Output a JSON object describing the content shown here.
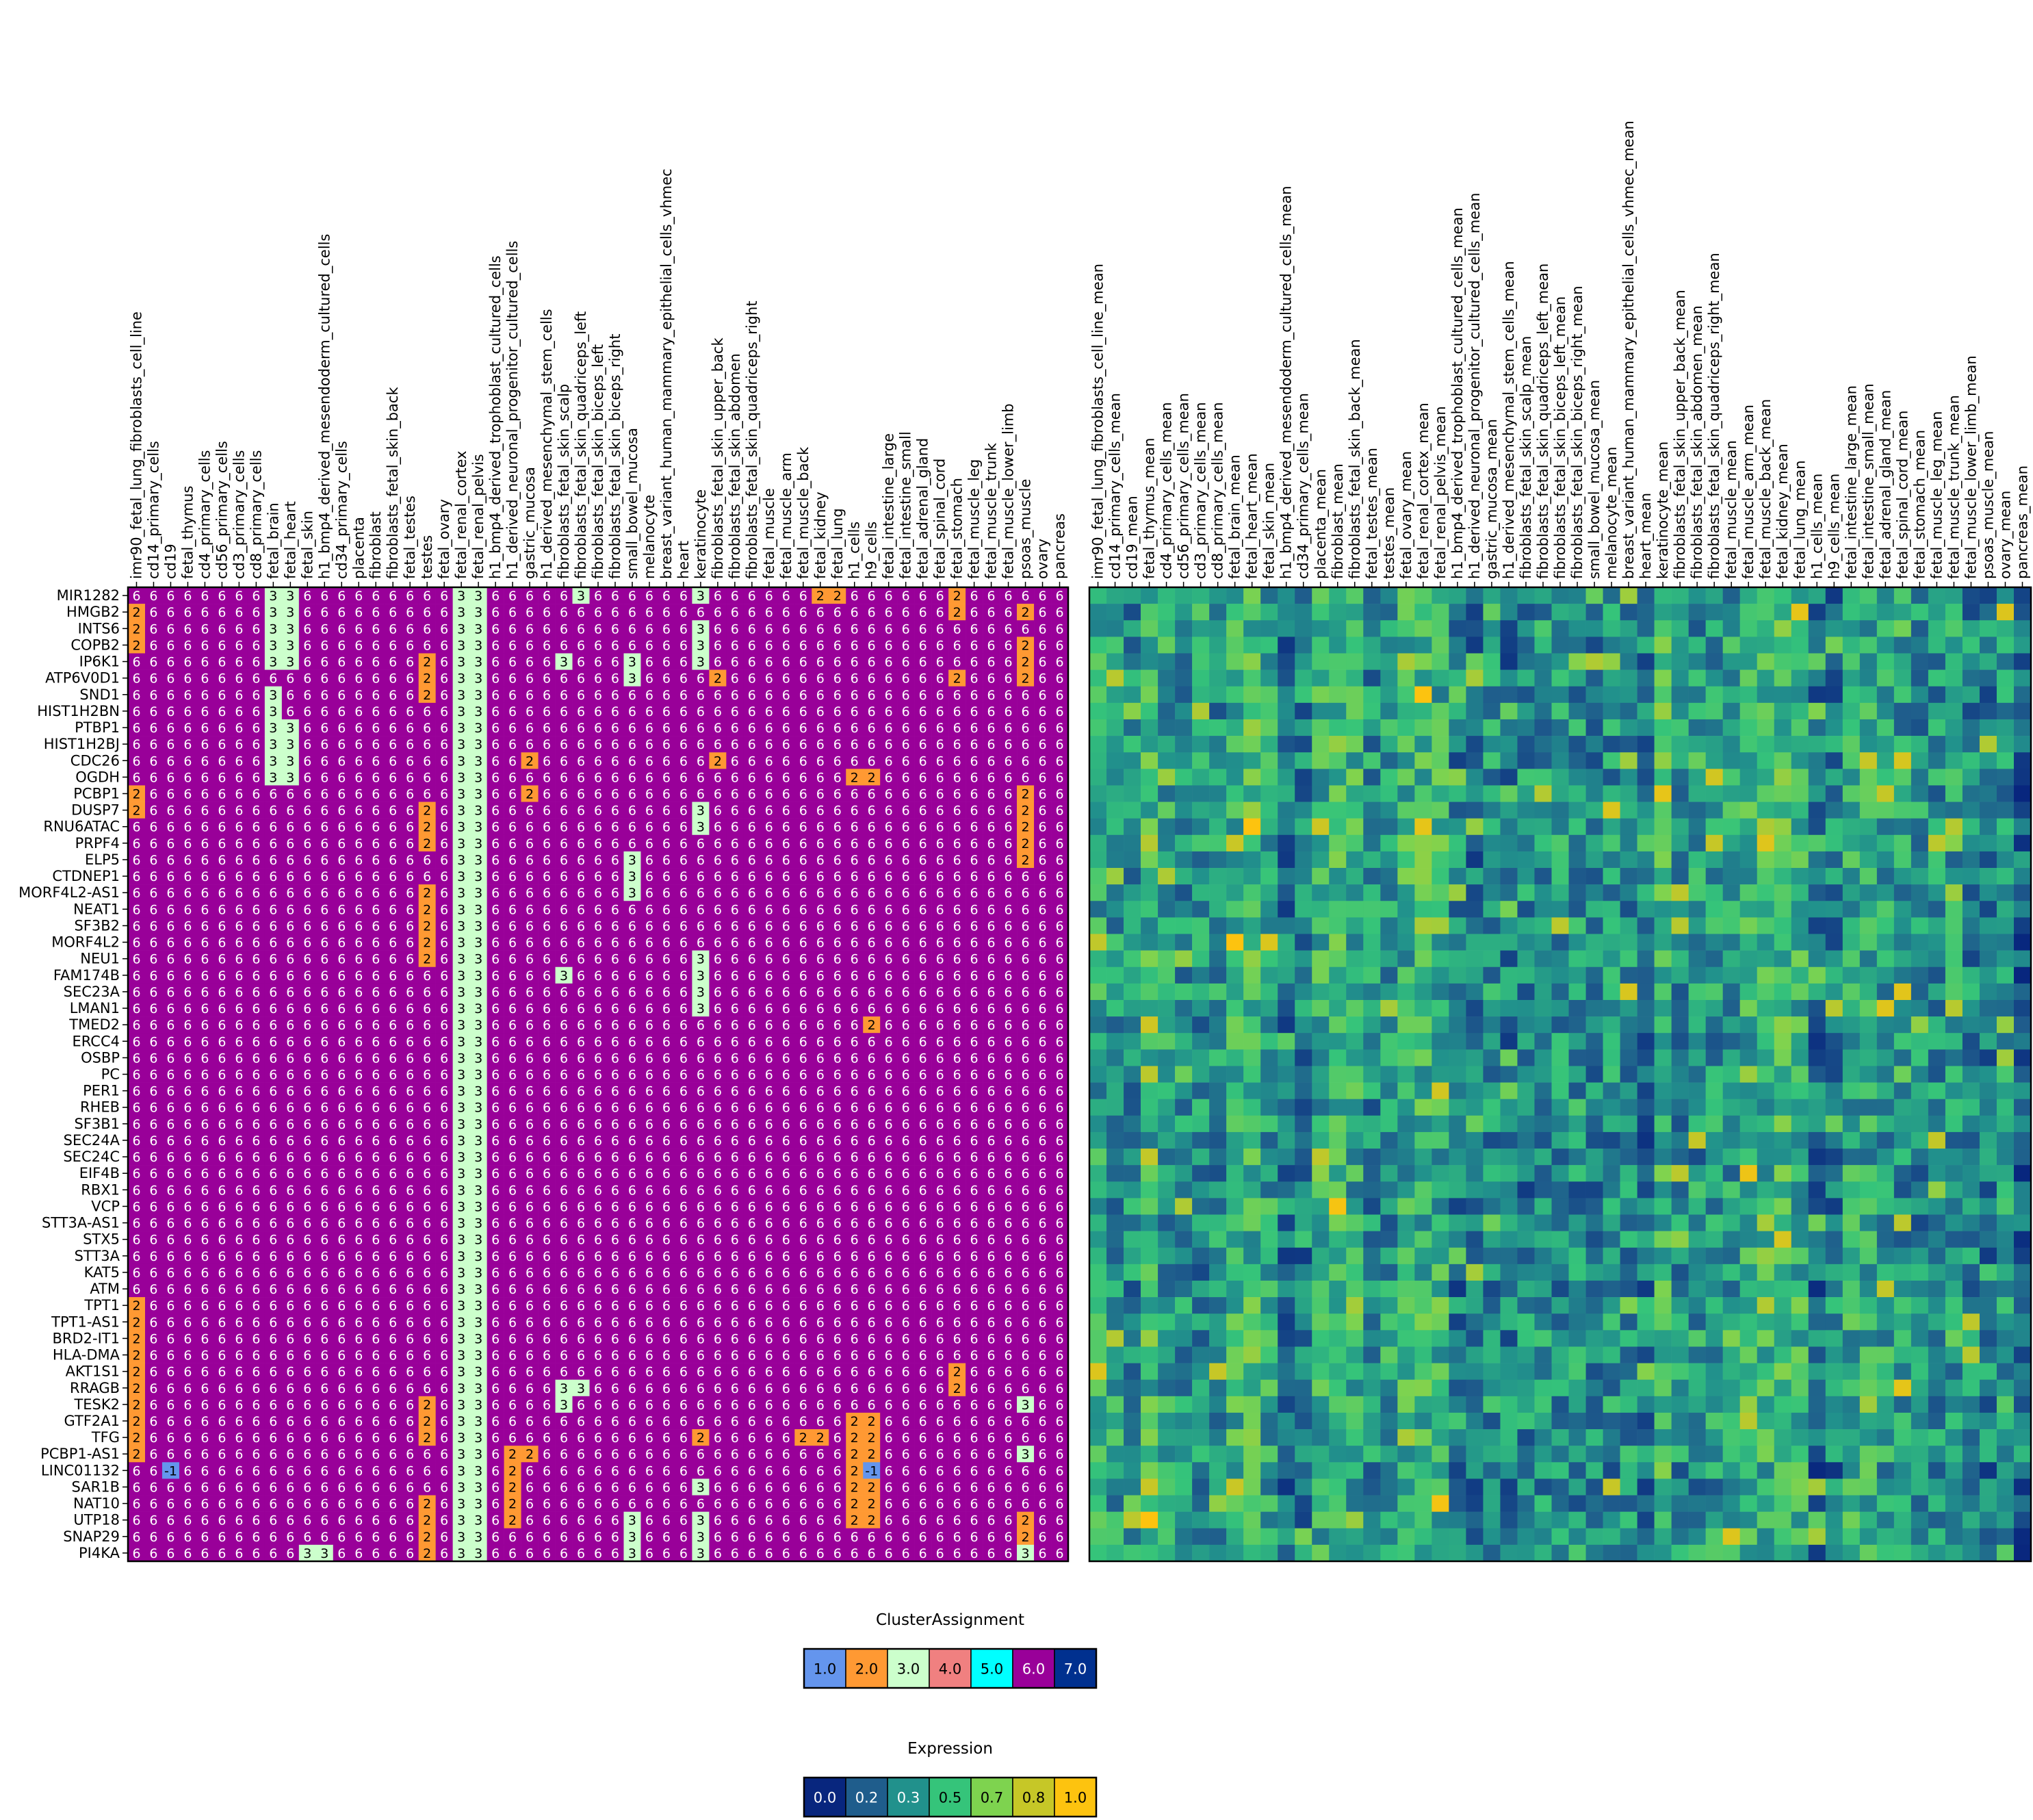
{
  "chart_data": [
    {
      "type": "heatmap",
      "title": "",
      "legend_title": "ClusterAssignment",
      "legend_values": [
        "1.0",
        "2.0",
        "3.0",
        "4.0",
        "5.0",
        "6.0",
        "7.0"
      ],
      "legend_colors": [
        "#6495ed",
        "#ff9933",
        "#ccffcc",
        "#f08080",
        "#00ffff",
        "#990099",
        "#00308f"
      ],
      "columns": [
        "imr90_fetal_lung_fibroblasts_cell_line",
        "cd14_primary_cells",
        "cd19",
        "fetal_thymus",
        "cd4_primary_cells",
        "cd56_primary_cells",
        "cd3_primary_cells",
        "cd8_primary_cells",
        "fetal_brain",
        "fetal_heart",
        "fetal_skin",
        "h1_bmp4_derived_mesendoderm_cultured_cells",
        "cd34_primary_cells",
        "placenta",
        "fibroblast",
        "fibroblasts_fetal_skin_back",
        "fetal_testes",
        "testes",
        "fetal_ovary",
        "fetal_renal_cortex",
        "fetal_renal_pelvis",
        "h1_bmp4_derived_trophoblast_cultured_cells",
        "h1_derived_neuronal_progenitor_cultured_cells",
        "gastric_mucosa",
        "h1_derived_mesenchymal_stem_cells",
        "fibroblasts_fetal_skin_scalp",
        "fibroblasts_fetal_skin_quadriceps_left",
        "fibroblasts_fetal_skin_biceps_left",
        "fibroblasts_fetal_skin_biceps_right",
        "small_bowel_mucosa",
        "melanocyte",
        "breast_variant_human_mammary_epithelial_cells_vhmec",
        "heart",
        "keratinocyte",
        "fibroblasts_fetal_skin_upper_back",
        "fibroblasts_fetal_skin_abdomen",
        "fibroblasts_fetal_skin_quadriceps_right",
        "fetal_muscle",
        "fetal_muscle_arm",
        "fetal_muscle_back",
        "fetal_kidney",
        "fetal_lung",
        "h1_cells",
        "h9_cells",
        "fetal_intestine_large",
        "fetal_intestine_small",
        "fetal_adrenal_gland",
        "fetal_spinal_cord",
        "fetal_stomach",
        "fetal_muscle_leg",
        "fetal_muscle_trunk",
        "fetal_muscle_lower_limb",
        "psoas_muscle",
        "ovary",
        "pancreas"
      ],
      "rows": [
        "MIR1282",
        "HMGB2",
        "INTS6",
        "COPB2",
        "IP6K1",
        "ATP6V0D1",
        "SND1",
        "HIST1H2BN",
        "PTBP1",
        "HIST1H2BJ",
        "CDC26",
        "OGDH",
        "PCBP1",
        "DUSP7",
        "RNU6ATAC",
        "PRPF4",
        "ELP5",
        "CTDNEP1",
        "MORF4L2-AS1",
        "NEAT1",
        "SF3B2",
        "MORF4L2",
        "NEU1",
        "FAM174B",
        "SEC23A",
        "LMAN1",
        "TMED2",
        "ERCC4",
        "OSBP",
        "PC",
        "PER1",
        "RHEB",
        "SF3B1",
        "SEC24A",
        "SEC24C",
        "EIF4B",
        "RBX1",
        "VCP",
        "STT3A-AS1",
        "STX5",
        "STT3A",
        "KAT5",
        "ATM",
        "TPT1",
        "TPT1-AS1",
        "BRD2-IT1",
        "HLA-DMA",
        "AKT1S1",
        "RRAGB",
        "TESK2",
        "GTF2A1",
        "TFG",
        "PCBP1-AS1",
        "LINC01132",
        "SAR1B",
        "NAT10",
        "UTP18",
        "SNAP29",
        "PI4KA"
      ],
      "default_value": 6,
      "values_by_row": {
        "MIR1282": {
          "8": 3,
          "9": 3,
          "19": 3,
          "20": 3,
          "26": 3,
          "33": 3,
          "40": 2,
          "41": 2,
          "48": 2
        },
        "HMGB2": {
          "0": 2,
          "8": 3,
          "9": 3,
          "19": 3,
          "20": 3,
          "48": 2,
          "52": 2
        },
        "INTS6": {
          "0": 2,
          "8": 3,
          "9": 3,
          "19": 3,
          "20": 3,
          "33": 3
        },
        "COPB2": {
          "0": 2,
          "8": 3,
          "9": 3,
          "19": 3,
          "20": 3,
          "33": 3,
          "52": 2
        },
        "IP6K1": {
          "8": 3,
          "9": 3,
          "17": 2,
          "19": 3,
          "20": 3,
          "25": 3,
          "29": 3,
          "33": 3,
          "52": 2
        },
        "ATP6V0D1": {
          "17": 2,
          "19": 3,
          "20": 3,
          "29": 3,
          "34": 2,
          "48": 2,
          "52": 2
        },
        "SND1": {
          "8": 3,
          "17": 2,
          "19": 3,
          "20": 3
        },
        "HIST1H2BN": {
          "8": 3,
          "19": 3,
          "20": 3
        },
        "PTBP1": {
          "8": 3,
          "9": 3,
          "19": 3,
          "20": 3
        },
        "HIST1H2BJ": {
          "8": 3,
          "9": 3,
          "19": 3,
          "20": 3
        },
        "CDC26": {
          "8": 3,
          "9": 3,
          "19": 3,
          "20": 3,
          "23": 2,
          "34": 2
        },
        "OGDH": {
          "8": 3,
          "9": 3,
          "19": 3,
          "20": 3,
          "42": 2,
          "43": 2
        },
        "PCBP1": {
          "0": 2,
          "19": 3,
          "20": 3,
          "23": 2,
          "52": 2
        },
        "DUSP7": {
          "0": 2,
          "17": 2,
          "19": 3,
          "20": 3,
          "33": 3,
          "52": 2
        },
        "RNU6ATAC": {
          "17": 2,
          "19": 3,
          "20": 3,
          "33": 3,
          "52": 2
        },
        "PRPF4": {
          "17": 2,
          "19": 3,
          "20": 3,
          "52": 2
        },
        "ELP5": {
          "19": 3,
          "20": 3,
          "29": 3,
          "52": 2
        },
        "CTDNEP1": {
          "19": 3,
          "20": 3,
          "29": 3
        },
        "MORF4L2-AS1": {
          "17": 2,
          "19": 3,
          "20": 3,
          "29": 3
        },
        "NEAT1": {
          "17": 2,
          "19": 3,
          "20": 3
        },
        "SF3B2": {
          "17": 2,
          "19": 3,
          "20": 3
        },
        "MORF4L2": {
          "17": 2,
          "19": 3,
          "20": 3
        },
        "NEU1": {
          "17": 2,
          "19": 3,
          "20": 3,
          "33": 3
        },
        "FAM174B": {
          "19": 3,
          "20": 3,
          "25": 3,
          "33": 3
        },
        "SEC23A": {
          "19": 3,
          "20": 3,
          "33": 3
        },
        "LMAN1": {
          "19": 3,
          "20": 3,
          "33": 3
        },
        "TMED2": {
          "19": 3,
          "20": 3,
          "43": 2
        },
        "ERCC4": {
          "19": 3,
          "20": 3
        },
        "OSBP": {
          "19": 3,
          "20": 3
        },
        "PC": {
          "19": 3,
          "20": 3
        },
        "PER1": {
          "19": 3,
          "20": 3
        },
        "RHEB": {
          "19": 3,
          "20": 3
        },
        "SF3B1": {
          "19": 3,
          "20": 3
        },
        "SEC24A": {
          "19": 3,
          "20": 3
        },
        "SEC24C": {
          "19": 3,
          "20": 3
        },
        "EIF4B": {
          "19": 3,
          "20": 3
        },
        "RBX1": {
          "19": 3,
          "20": 3
        },
        "VCP": {
          "19": 3,
          "20": 3
        },
        "STT3A-AS1": {
          "19": 3,
          "20": 3
        },
        "STX5": {
          "19": 3,
          "20": 3
        },
        "STT3A": {
          "19": 3,
          "20": 3
        },
        "KAT5": {
          "19": 3,
          "20": 3
        },
        "ATM": {
          "19": 3,
          "20": 3
        },
        "TPT1": {
          "0": 2,
          "19": 3,
          "20": 3
        },
        "TPT1-AS1": {
          "0": 2,
          "19": 3,
          "20": 3
        },
        "BRD2-IT1": {
          "0": 2,
          "19": 3,
          "20": 3
        },
        "HLA-DMA": {
          "0": 2,
          "19": 3,
          "20": 3
        },
        "AKT1S1": {
          "0": 2,
          "19": 3,
          "20": 3,
          "48": 2
        },
        "RRAGB": {
          "0": 2,
          "19": 3,
          "20": 3,
          "25": 3,
          "26": 3,
          "48": 2
        },
        "TESK2": {
          "0": 2,
          "17": 2,
          "19": 3,
          "20": 3,
          "25": 3,
          "52": 3
        },
        "GTF2A1": {
          "0": 2,
          "17": 2,
          "19": 3,
          "20": 3,
          "42": 2,
          "43": 2
        },
        "TFG": {
          "0": 2,
          "17": 2,
          "19": 3,
          "20": 3,
          "33": 2,
          "39": 2,
          "40": 2,
          "42": 2,
          "43": 2
        },
        "PCBP1-AS1": {
          "0": 2,
          "19": 3,
          "20": 3,
          "22": 2,
          "23": 2,
          "42": 2,
          "43": 2,
          "52": 3
        },
        "LINC01132": {
          "2": -1,
          "19": 3,
          "20": 3,
          "22": 2,
          "42": 2,
          "43": -1
        },
        "SAR1B": {
          "19": 3,
          "20": 3,
          "22": 2,
          "33": 3,
          "42": 2,
          "43": 2
        },
        "NAT10": {
          "17": 2,
          "19": 3,
          "20": 3,
          "22": 2,
          "42": 2,
          "43": 2
        },
        "UTP18": {
          "17": 2,
          "19": 3,
          "20": 3,
          "22": 2,
          "29": 3,
          "33": 3,
          "42": 2,
          "43": 2,
          "52": 2
        },
        "SNAP29": {
          "17": 2,
          "19": 3,
          "20": 3,
          "29": 3,
          "33": 3,
          "52": 2
        },
        "PI4KA": {
          "10": 3,
          "11": 3,
          "17": 2,
          "19": 3,
          "20": 3,
          "29": 3,
          "33": 3,
          "52": 3
        }
      }
    },
    {
      "type": "heatmap",
      "title": "",
      "legend_title": "Expression",
      "legend_values": [
        "0.0",
        "0.2",
        "0.3",
        "0.5",
        "0.7",
        "0.8",
        "1.0"
      ],
      "legend_colors": [
        "#08267e",
        "#1f5d8c",
        "#21918c",
        "#35c47a",
        "#7ed34f",
        "#c6c727",
        "#fdc30f"
      ],
      "range": [
        0,
        1
      ],
      "columns": [
        "imr90_fetal_lung_fibroblasts_cell_line_mean",
        "cd14_primary_cells_mean",
        "cd19_mean",
        "fetal_thymus_mean",
        "cd4_primary_cells_mean",
        "cd56_primary_cells_mean",
        "cd3_primary_cells_mean",
        "cd8_primary_cells_mean",
        "fetal_brain_mean",
        "fetal_heart_mean",
        "fetal_skin_mean",
        "h1_bmp4_derived_mesendoderm_cultured_cells_mean",
        "cd34_primary_cells_mean",
        "placenta_mean",
        "fibroblast_mean",
        "fibroblasts_fetal_skin_back_mean",
        "fetal_testes_mean",
        "testes_mean",
        "fetal_ovary_mean",
        "fetal_renal_cortex_mean",
        "fetal_renal_pelvis_mean",
        "h1_bmp4_derived_trophoblast_cultured_cells_mean",
        "h1_derived_neuronal_progenitor_cultured_cells_mean",
        "gastric_mucosa_mean",
        "h1_derived_mesenchymal_stem_cells_mean",
        "fibroblasts_fetal_skin_scalp_mean",
        "fibroblasts_fetal_skin_quadriceps_left_mean",
        "fibroblasts_fetal_skin_biceps_left_mean",
        "fibroblasts_fetal_skin_biceps_right_mean",
        "small_bowel_mucosa_mean",
        "melanocyte_mean",
        "breast_variant_human_mammary_epithelial_cells_vhmec_mean",
        "heart_mean",
        "keratinocyte_mean",
        "fibroblasts_fetal_skin_upper_back_mean",
        "fibroblasts_fetal_skin_abdomen_mean",
        "fibroblasts_fetal_skin_quadriceps_right_mean",
        "fetal_muscle_mean",
        "fetal_muscle_arm_mean",
        "fetal_muscle_back_mean",
        "fetal_kidney_mean",
        "fetal_lung_mean",
        "h1_cells_mean",
        "h9_cells_mean",
        "fetal_intestine_large_mean",
        "fetal_intestine_small_mean",
        "fetal_adrenal_gland_mean",
        "fetal_spinal_cord_mean",
        "fetal_stomach_mean",
        "fetal_muscle_leg_mean",
        "fetal_muscle_trunk_mean",
        "fetal_muscle_lower_limb_mean",
        "psoas_muscle_mean",
        "ovary_mean",
        "pancreas_mean"
      ],
      "rows": "same as cluster heatmap",
      "column_profile": [
        0.45,
        0.35,
        0.3,
        0.55,
        0.4,
        0.3,
        0.3,
        0.3,
        0.5,
        0.6,
        0.4,
        0.15,
        0.2,
        0.5,
        0.55,
        0.5,
        0.3,
        0.35,
        0.5,
        0.55,
        0.5,
        0.2,
        0.15,
        0.3,
        0.2,
        0.25,
        0.3,
        0.3,
        0.3,
        0.25,
        0.3,
        0.3,
        0.2,
        0.6,
        0.3,
        0.3,
        0.35,
        0.4,
        0.5,
        0.55,
        0.6,
        0.55,
        0.15,
        0.2,
        0.45,
        0.45,
        0.4,
        0.35,
        0.3,
        0.3,
        0.35,
        0.25,
        0.2,
        0.35,
        0.05
      ],
      "row_profile": [
        0.35,
        0.35,
        0.38,
        0.4,
        0.35,
        0.35,
        0.38,
        0.38,
        0.4,
        0.38,
        0.4,
        0.4,
        0.35,
        0.4,
        0.42,
        0.45,
        0.42,
        0.42,
        0.4,
        0.38,
        0.38,
        0.38,
        0.35,
        0.38,
        0.4,
        0.35,
        0.35,
        0.35,
        0.35,
        0.35,
        0.35,
        0.32,
        0.32,
        0.3,
        0.3,
        0.32,
        0.3,
        0.32,
        0.32,
        0.32,
        0.32,
        0.32,
        0.3,
        0.45,
        0.42,
        0.4,
        0.45,
        0.42,
        0.4,
        0.42,
        0.4,
        0.42,
        0.4,
        0.3,
        0.35,
        0.35,
        0.4,
        0.38,
        0.42
      ]
    }
  ]
}
